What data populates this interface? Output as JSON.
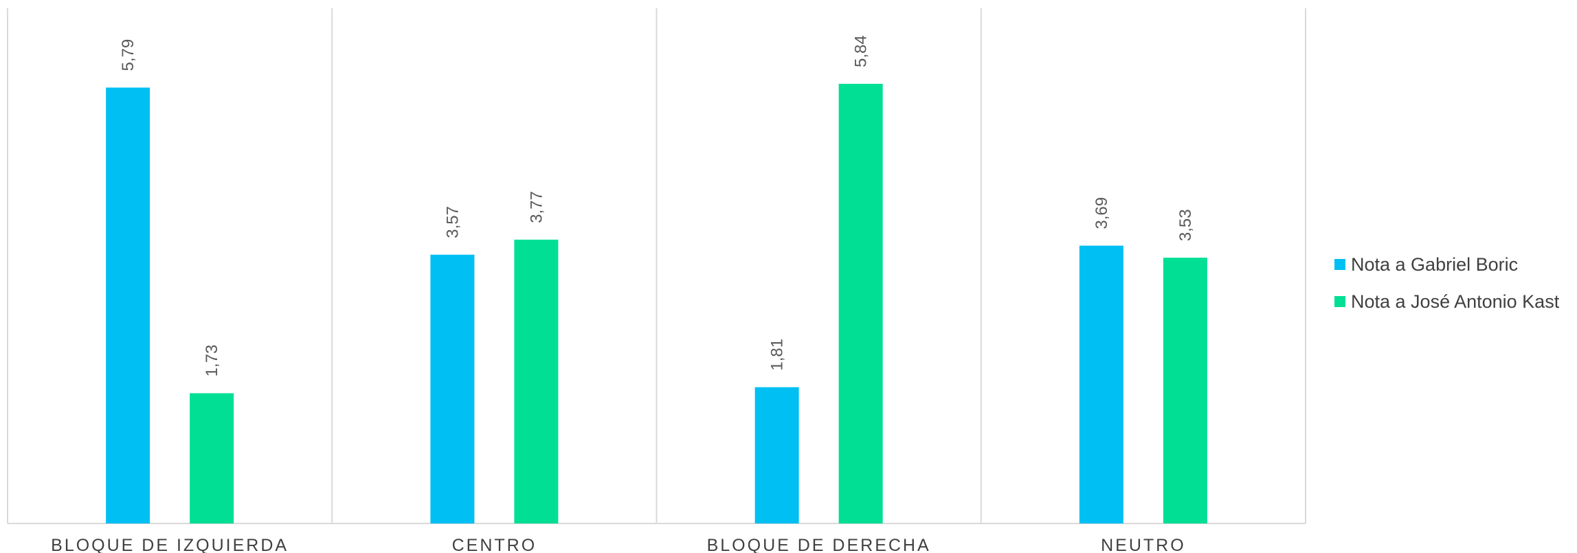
{
  "chart_data": {
    "type": "bar",
    "categories": [
      "BLOQUE DE IZQUIERDA",
      "CENTRO",
      "BLOQUE DE DERECHA",
      "NEUTRO"
    ],
    "series": [
      {
        "name": "Nota a Gabriel Boric",
        "values": [
          5.79,
          3.57,
          1.81,
          3.69
        ],
        "labels": [
          "5,79",
          "3,57",
          "1,81",
          "3,69"
        ],
        "color": "#00BFF3"
      },
      {
        "name": "Nota a José Antonio Kast",
        "values": [
          1.73,
          3.77,
          5.84,
          3.53
        ],
        "labels": [
          "1,73",
          "3,77",
          "5,84",
          "3,53"
        ],
        "color": "#00DF93"
      }
    ],
    "ylim": [
      0,
      7
    ],
    "grid": "vertical category separators",
    "legend": "right"
  }
}
